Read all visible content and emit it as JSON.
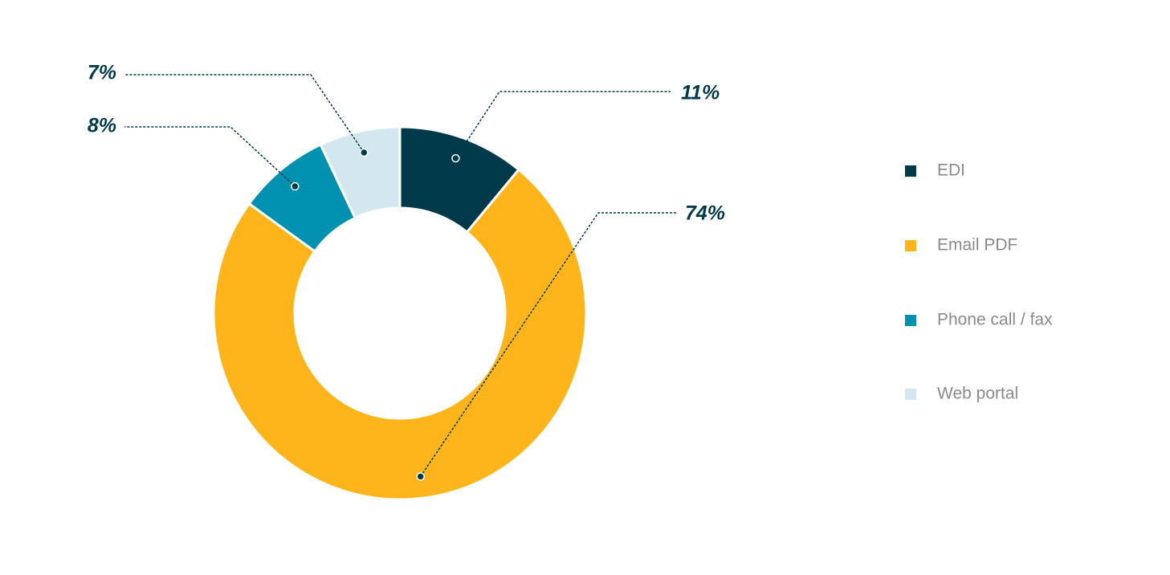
{
  "chart_data": {
    "type": "donut",
    "categories": [
      "EDI",
      "Email PDF",
      "Phone call / fax",
      "Web portal"
    ],
    "values": [
      11,
      74,
      8,
      7
    ],
    "value_labels": [
      "11%",
      "74%",
      "8%",
      "7%"
    ],
    "colors": [
      "#003a4a",
      "#fdb51b",
      "#0090b0",
      "#d3e7ef"
    ],
    "legend": "right"
  }
}
